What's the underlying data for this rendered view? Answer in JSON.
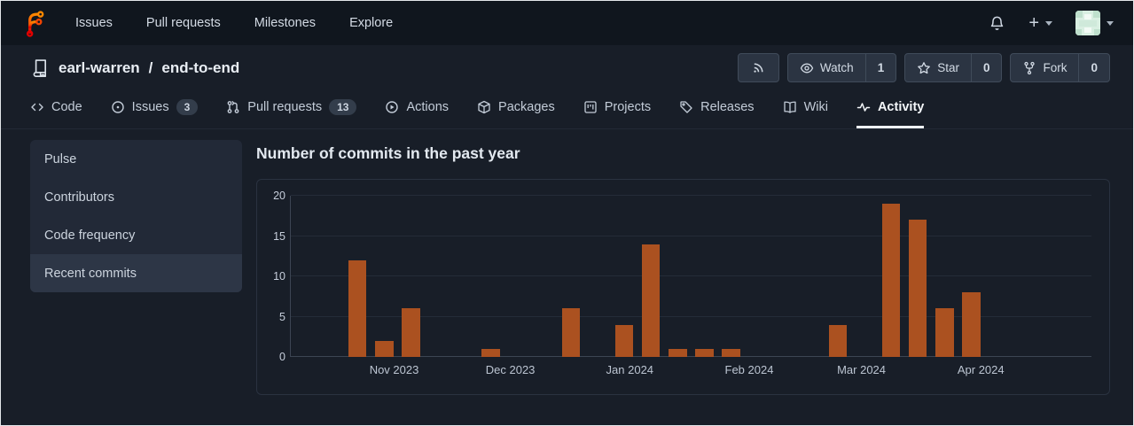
{
  "navbar": {
    "links": [
      {
        "label": "Issues"
      },
      {
        "label": "Pull requests"
      },
      {
        "label": "Milestones"
      },
      {
        "label": "Explore"
      }
    ],
    "plus_label": "+"
  },
  "repo": {
    "owner": "earl-warren",
    "separator": "/",
    "name": "end-to-end",
    "actions": {
      "watch_label": "Watch",
      "watch_count": "1",
      "star_label": "Star",
      "star_count": "0",
      "fork_label": "Fork",
      "fork_count": "0"
    }
  },
  "tabs": [
    {
      "label": "Code",
      "icon": "code-icon"
    },
    {
      "label": "Issues",
      "icon": "issue-opened-icon",
      "badge": "3"
    },
    {
      "label": "Pull requests",
      "icon": "git-pull-request-icon",
      "badge": "13"
    },
    {
      "label": "Actions",
      "icon": "play-circle-icon"
    },
    {
      "label": "Packages",
      "icon": "package-icon"
    },
    {
      "label": "Projects",
      "icon": "project-board-icon"
    },
    {
      "label": "Releases",
      "icon": "tag-icon"
    },
    {
      "label": "Wiki",
      "icon": "book-icon"
    },
    {
      "label": "Activity",
      "icon": "pulse-icon",
      "active": true
    }
  ],
  "sidebar": {
    "items": [
      {
        "label": "Pulse"
      },
      {
        "label": "Contributors"
      },
      {
        "label": "Code frequency"
      },
      {
        "label": "Recent commits",
        "active": true
      }
    ]
  },
  "main": {
    "title": "Number of commits in the past year"
  },
  "chart_data": {
    "type": "bar",
    "title": "Number of commits in the past year",
    "x_unit": "week",
    "values": [
      0,
      0,
      12,
      2,
      6,
      0,
      0,
      1,
      0,
      0,
      6,
      0,
      4,
      14,
      1,
      1,
      1,
      0,
      0,
      0,
      4,
      0,
      19,
      17,
      6,
      8,
      0,
      0,
      0,
      0
    ],
    "weekly_commits_nonzero_in_order": [
      12,
      2,
      6,
      1,
      6,
      4,
      14,
      1,
      1,
      1,
      4,
      19,
      17,
      6,
      8
    ],
    "y_ticks": [
      0,
      5,
      10,
      15,
      20
    ],
    "ylim": [
      0,
      20
    ],
    "x_labels": [
      {
        "label": "Nov 2023",
        "pos": 0.13
      },
      {
        "label": "Dec 2023",
        "pos": 0.275
      },
      {
        "label": "Jan 2024",
        "pos": 0.424
      },
      {
        "label": "Feb 2024",
        "pos": 0.573
      },
      {
        "label": "Mar 2024",
        "pos": 0.713
      },
      {
        "label": "Apr 2024",
        "pos": 0.862
      }
    ],
    "grid": true,
    "legend": "none",
    "bar_color": "#ab5120",
    "grid_color": "#242c38",
    "axis_color": "#3c4553"
  }
}
